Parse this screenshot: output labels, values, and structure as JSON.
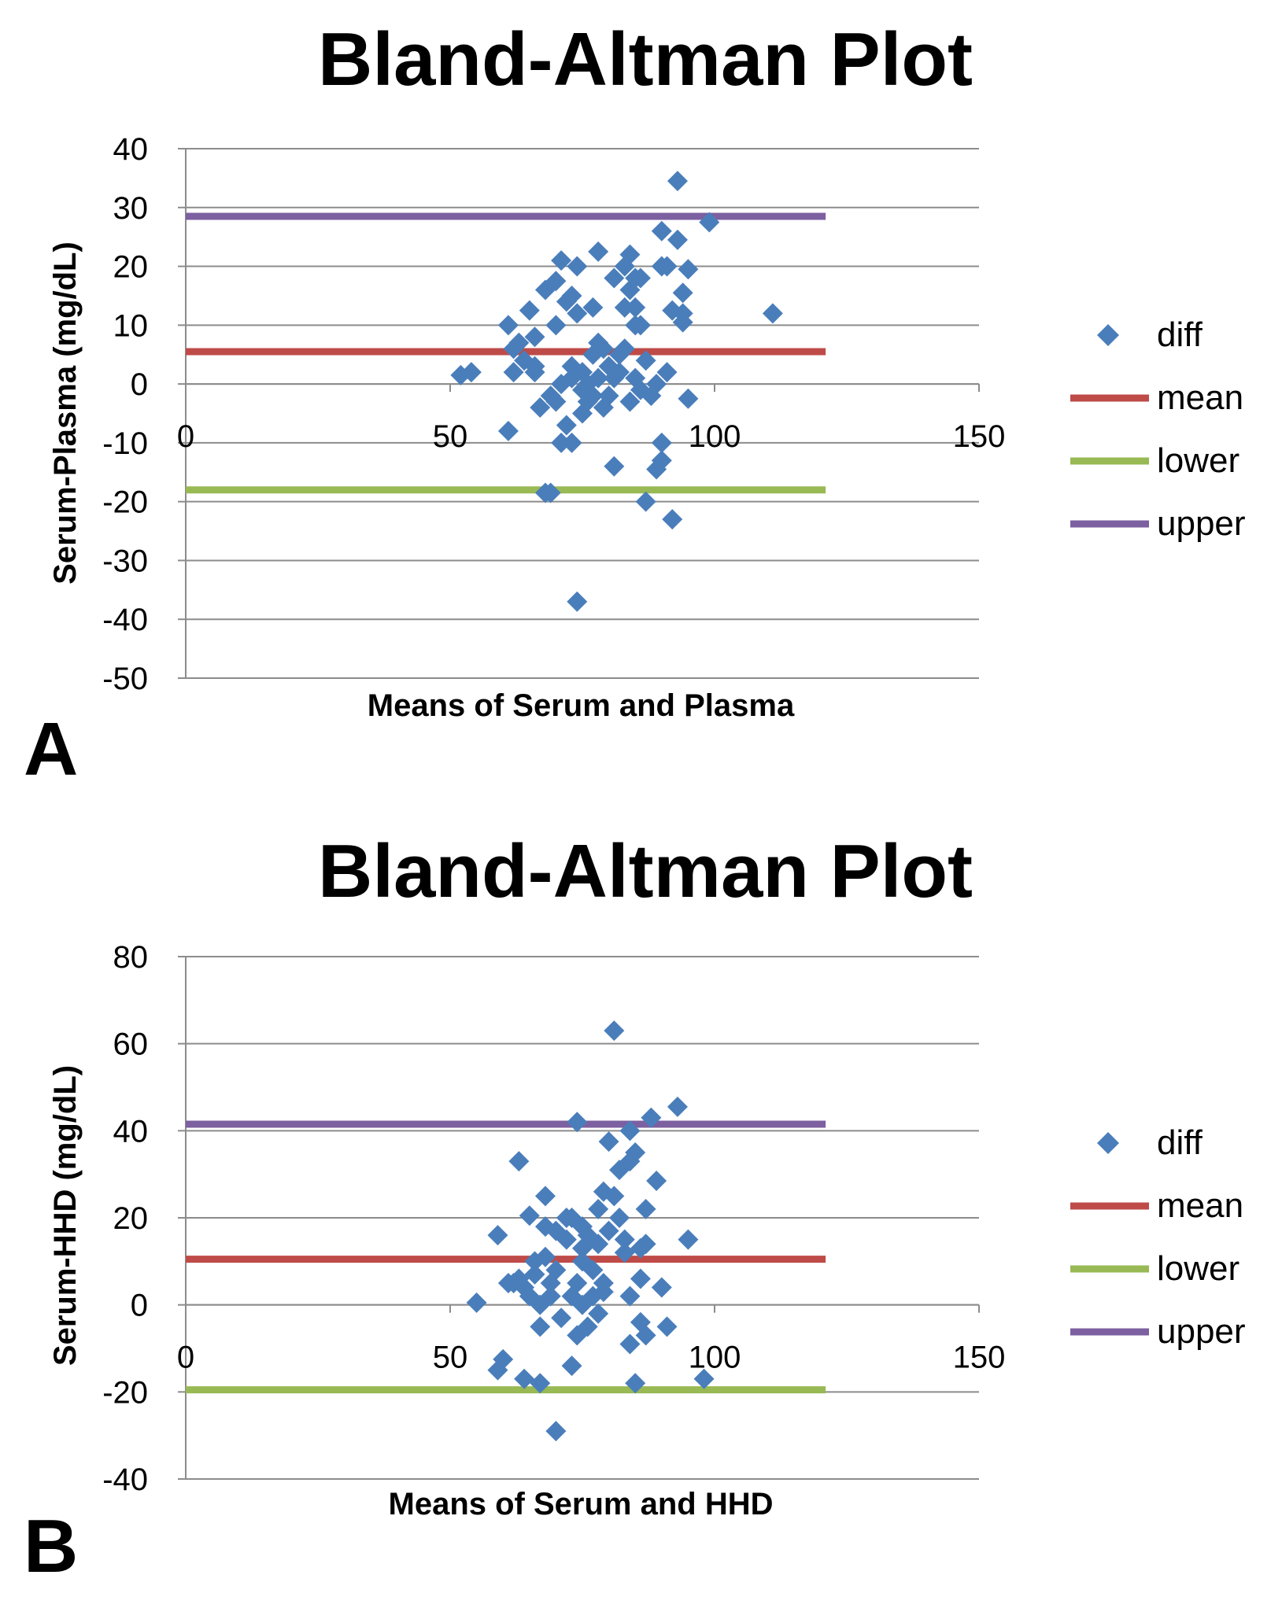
{
  "chart_data": [
    {
      "type": "scatter",
      "panel_label": "A",
      "title": "Bland-Altman Plot",
      "xlabel": "Means of Serum and Plasma",
      "ylabel": "Serum-Plasma (mg/dL)",
      "xlim": [
        0,
        150
      ],
      "ylim": [
        -50,
        40
      ],
      "xticks": [
        0,
        50,
        100,
        150
      ],
      "yticks": [
        40,
        30,
        20,
        10,
        0,
        -10,
        -20,
        -30,
        -40,
        -50
      ],
      "grid": true,
      "legend_position": "right",
      "colors": {
        "diff": "#4a7ebb",
        "mean": "#be4b48",
        "lower": "#98b954",
        "upper": "#7d60a0"
      },
      "lines": [
        {
          "name": "mean",
          "y": 5.5,
          "x_range": [
            0,
            121
          ]
        },
        {
          "name": "lower",
          "y": -18,
          "x_range": [
            0,
            121
          ]
        },
        {
          "name": "upper",
          "y": 28.5,
          "x_range": [
            0,
            121
          ]
        }
      ],
      "legend": [
        "diff",
        "mean",
        "lower",
        "upper"
      ],
      "series": [
        {
          "name": "diff",
          "points": [
            [
              52,
              1.5
            ],
            [
              54,
              2
            ],
            [
              61,
              -8
            ],
            [
              61,
              10
            ],
            [
              62,
              6
            ],
            [
              62,
              2
            ],
            [
              63,
              7
            ],
            [
              64,
              4
            ],
            [
              65,
              12.5
            ],
            [
              66,
              8
            ],
            [
              66,
              2
            ],
            [
              66,
              3
            ],
            [
              67,
              -4
            ],
            [
              68,
              -18.5
            ],
            [
              68,
              16
            ],
            [
              69,
              -18.5
            ],
            [
              69,
              -2
            ],
            [
              70,
              10
            ],
            [
              70,
              17.5
            ],
            [
              70,
              -3
            ],
            [
              71,
              0
            ],
            [
              71,
              -10
            ],
            [
              71,
              21
            ],
            [
              72,
              14
            ],
            [
              72,
              -7
            ],
            [
              73,
              -10
            ],
            [
              73,
              15
            ],
            [
              73,
              3
            ],
            [
              73,
              1
            ],
            [
              74,
              -37
            ],
            [
              74,
              12
            ],
            [
              74,
              20
            ],
            [
              75,
              -1
            ],
            [
              75,
              2
            ],
            [
              75,
              -5
            ],
            [
              76,
              0
            ],
            [
              76,
              -3
            ],
            [
              77,
              13
            ],
            [
              77,
              -2
            ],
            [
              77,
              5
            ],
            [
              78,
              22.5
            ],
            [
              78,
              7
            ],
            [
              78,
              1
            ],
            [
              79,
              -4
            ],
            [
              79,
              6
            ],
            [
              80,
              3
            ],
            [
              80,
              -2
            ],
            [
              81,
              -14
            ],
            [
              81,
              18
            ],
            [
              81,
              1
            ],
            [
              82,
              2
            ],
            [
              82,
              5
            ],
            [
              83,
              13
            ],
            [
              83,
              20
            ],
            [
              83,
              6
            ],
            [
              84,
              16
            ],
            [
              84,
              -3
            ],
            [
              84,
              22
            ],
            [
              85,
              1
            ],
            [
              85,
              10
            ],
            [
              85,
              13
            ],
            [
              85,
              18
            ],
            [
              86,
              18
            ],
            [
              86,
              -1
            ],
            [
              86,
              10
            ],
            [
              87,
              -20
            ],
            [
              87,
              4
            ],
            [
              88,
              -2
            ],
            [
              89,
              -14.5
            ],
            [
              89,
              0
            ],
            [
              90,
              -10
            ],
            [
              90,
              -13
            ],
            [
              90,
              26
            ],
            [
              90,
              20
            ],
            [
              91,
              2
            ],
            [
              91,
              20
            ],
            [
              92,
              -23
            ],
            [
              92,
              12.5
            ],
            [
              93,
              34.5
            ],
            [
              93,
              24.5
            ],
            [
              94,
              15.5
            ],
            [
              94,
              10.5
            ],
            [
              94,
              12
            ],
            [
              95,
              19.5
            ],
            [
              95,
              -2.5
            ],
            [
              99,
              27.5
            ],
            [
              111,
              12
            ]
          ]
        }
      ]
    },
    {
      "type": "scatter",
      "panel_label": "B",
      "title": "Bland-Altman Plot",
      "xlabel": "Means of Serum and HHD",
      "ylabel": "Serum-HHD (mg/dL)",
      "xlim": [
        0,
        150
      ],
      "ylim": [
        -40,
        80
      ],
      "xticks": [
        0,
        50,
        100,
        150
      ],
      "yticks": [
        80,
        60,
        40,
        20,
        0,
        -20,
        -40
      ],
      "grid": true,
      "legend_position": "right",
      "colors": {
        "diff": "#4a7ebb",
        "mean": "#be4b48",
        "lower": "#98b954",
        "upper": "#7d60a0"
      },
      "lines": [
        {
          "name": "mean",
          "y": 10.5,
          "x_range": [
            0,
            121
          ]
        },
        {
          "name": "lower",
          "y": -19.5,
          "x_range": [
            0,
            121
          ]
        },
        {
          "name": "upper",
          "y": 41.5,
          "x_range": [
            0,
            121
          ]
        }
      ],
      "legend": [
        "diff",
        "mean",
        "lower",
        "upper"
      ],
      "series": [
        {
          "name": "diff",
          "points": [
            [
              55,
              0.5
            ],
            [
              59,
              -15
            ],
            [
              59,
              16
            ],
            [
              60,
              -12.5
            ],
            [
              61,
              5
            ],
            [
              62,
              5
            ],
            [
              63,
              33
            ],
            [
              63,
              6
            ],
            [
              64,
              -17
            ],
            [
              64,
              4
            ],
            [
              65,
              2
            ],
            [
              65,
              20.5
            ],
            [
              66,
              7
            ],
            [
              66,
              10
            ],
            [
              67,
              -18
            ],
            [
              67,
              -5
            ],
            [
              67,
              0
            ],
            [
              68,
              25
            ],
            [
              68,
              11
            ],
            [
              68,
              18
            ],
            [
              69,
              2
            ],
            [
              69,
              5
            ],
            [
              70,
              -29
            ],
            [
              70,
              8
            ],
            [
              70,
              17
            ],
            [
              71,
              -3
            ],
            [
              72,
              20
            ],
            [
              72,
              15
            ],
            [
              73,
              -14
            ],
            [
              73,
              2
            ],
            [
              73,
              20
            ],
            [
              74,
              -7
            ],
            [
              74,
              42
            ],
            [
              74,
              5
            ],
            [
              75,
              0
            ],
            [
              75,
              13
            ],
            [
              75,
              10
            ],
            [
              75,
              18
            ],
            [
              76,
              -5
            ],
            [
              76,
              16
            ],
            [
              77,
              2
            ],
            [
              77,
              8
            ],
            [
              78,
              22
            ],
            [
              78,
              -2
            ],
            [
              78,
              14
            ],
            [
              79,
              3
            ],
            [
              79,
              26
            ],
            [
              79,
              5
            ],
            [
              80,
              37.5
            ],
            [
              80,
              17
            ],
            [
              81,
              25
            ],
            [
              81,
              63
            ],
            [
              82,
              31
            ],
            [
              82,
              20
            ],
            [
              83,
              15
            ],
            [
              83,
              12
            ],
            [
              84,
              -9
            ],
            [
              84,
              40
            ],
            [
              84,
              33
            ],
            [
              84,
              2
            ],
            [
              85,
              -18
            ],
            [
              85,
              35
            ],
            [
              86,
              6
            ],
            [
              86,
              -4
            ],
            [
              86,
              13
            ],
            [
              87,
              -7
            ],
            [
              87,
              14
            ],
            [
              87,
              22
            ],
            [
              88,
              43
            ],
            [
              89,
              28.5
            ],
            [
              90,
              4
            ],
            [
              91,
              -5
            ],
            [
              93,
              45.5
            ],
            [
              95,
              15
            ],
            [
              98,
              -17
            ]
          ]
        }
      ]
    }
  ]
}
